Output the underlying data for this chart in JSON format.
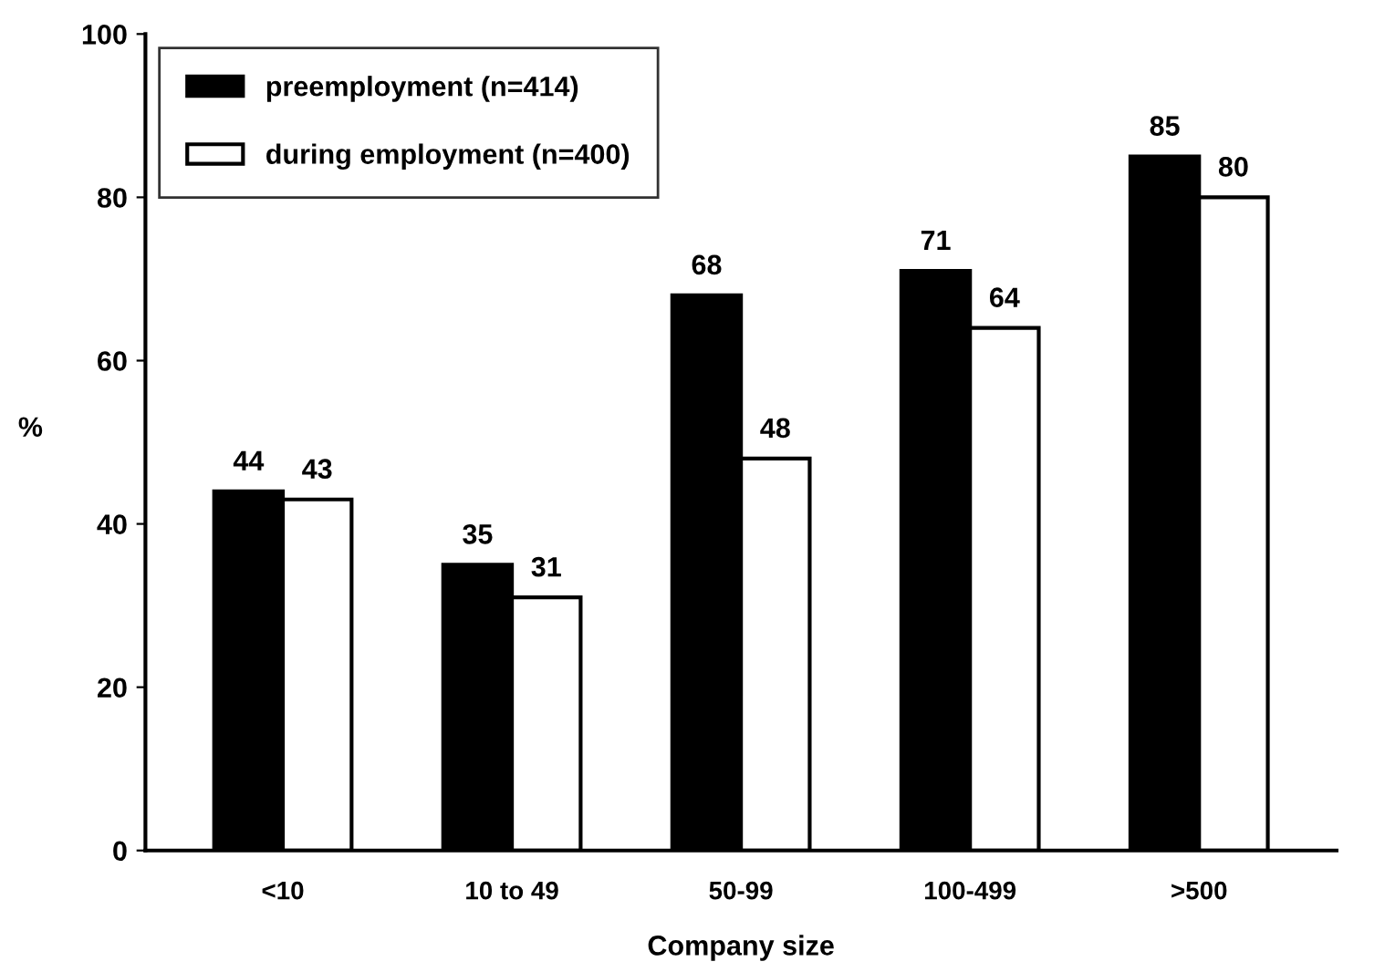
{
  "chart_data": {
    "type": "bar",
    "xlabel": "Company size",
    "ylabel": "%",
    "categories": [
      "<10",
      "10 to 49",
      "50-99",
      "100-499",
      ">500"
    ],
    "series": [
      {
        "name": "preemployment (n=414)",
        "color": "#000000",
        "values": [
          44,
          35,
          68,
          71,
          85
        ]
      },
      {
        "name": "during employment (n=400)",
        "color": "#ffffff",
        "values": [
          43,
          31,
          48,
          64,
          80
        ]
      }
    ],
    "ylim": [
      0,
      100
    ],
    "yticks": [
      0,
      20,
      40,
      60,
      80,
      100
    ],
    "data_labels": true,
    "grid": false,
    "legend": "top left"
  }
}
